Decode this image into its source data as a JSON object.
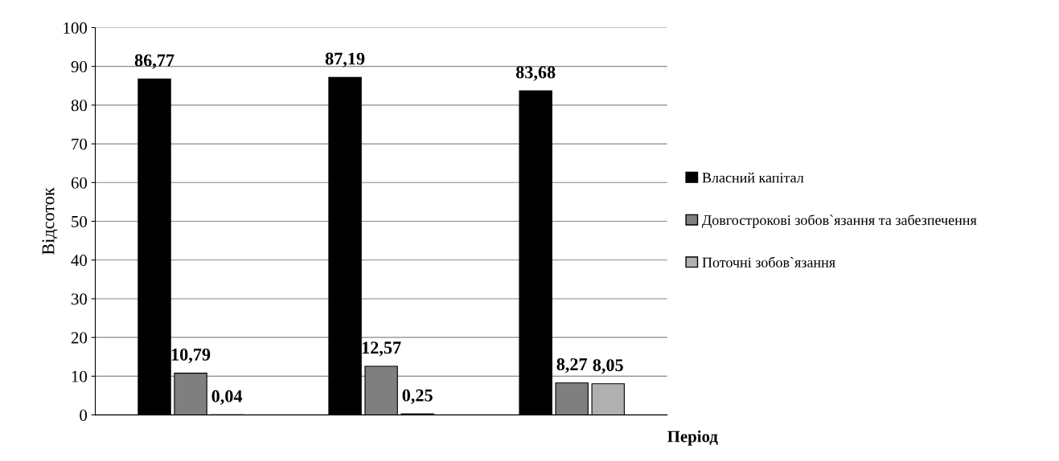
{
  "chart_data": {
    "type": "bar",
    "ylabel": "Відсоток",
    "xlabel": "Період",
    "categories": [
      null,
      null,
      null
    ],
    "series": [
      {
        "name": "Власний капітал",
        "color": "#000000",
        "values": [
          86.77,
          87.19,
          83.68
        ],
        "value_labels": [
          "86,77",
          "87,19",
          "83,68"
        ]
      },
      {
        "name": "Довгострокові зобов`язання та забезпечення",
        "color": "#7f7f7f",
        "values": [
          10.79,
          12.57,
          8.27
        ],
        "value_labels": [
          "10,79",
          "12,57",
          "8,27"
        ]
      },
      {
        "name": "Поточні зобов`язання",
        "color": "#b0b0b0",
        "values": [
          0.04,
          0.25,
          8.05
        ],
        "value_labels": [
          "0,04",
          "0,25",
          "8,05"
        ]
      }
    ],
    "ylim": [
      0,
      100
    ],
    "yticks": [
      0,
      10,
      20,
      30,
      40,
      50,
      60,
      70,
      80,
      90,
      100
    ],
    "grid": "y",
    "legend": "right"
  }
}
